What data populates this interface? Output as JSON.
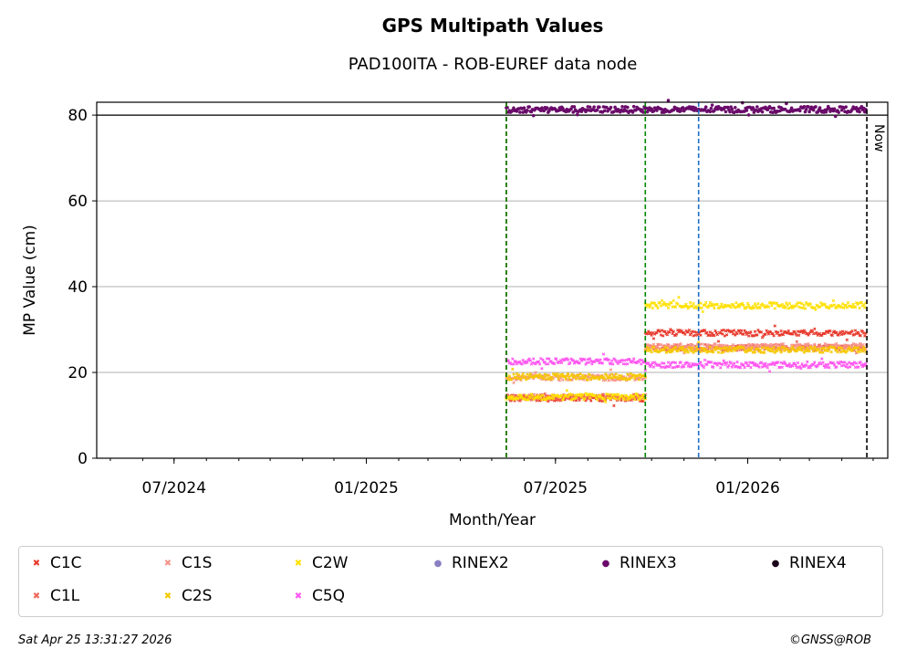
{
  "chart_data": {
    "type": "scatter",
    "title": "GPS Multipath Values",
    "subtitle": "PAD100ITA - ROB-EUREF data node",
    "xlabel": "Month/Year",
    "ylabel": "MP Value (cm)",
    "xlim": [
      "2024-04-18",
      "2026-05-15"
    ],
    "ylim": [
      0,
      83
    ],
    "x_tick_labels": [
      "07/2024",
      "01/2025",
      "07/2025",
      "01/2026"
    ],
    "x_ticks": [
      "2024-07-01",
      "2025-01-01",
      "2025-07-01",
      "2026-01-01"
    ],
    "y_ticks": [
      0,
      20,
      40,
      60,
      80
    ],
    "grid": "horizontal",
    "reference_line": 80,
    "now_date": "2026-04-25",
    "now_label": "Now",
    "vertical_events": [
      {
        "date": "2025-05-15",
        "color": "#cc0000"
      },
      {
        "date": "2025-05-15",
        "color": "#008800"
      },
      {
        "date": "2025-09-25",
        "color": "#008800"
      },
      {
        "date": "2025-11-15",
        "color": "#1f6fc6"
      }
    ],
    "series": [
      {
        "name": "C1C",
        "marker": "x",
        "color": "#e8392c",
        "segments": [
          {
            "from": "2025-05-15",
            "to": "2025-09-25",
            "mean": 14
          },
          {
            "from": "2025-09-25",
            "to": "2026-04-24",
            "mean": 29.2
          }
        ]
      },
      {
        "name": "C1L",
        "marker": "x",
        "color": "#f0655a",
        "segments": [
          {
            "from": "2025-05-15",
            "to": "2025-09-25",
            "mean": 14.2
          },
          {
            "from": "2025-09-25",
            "to": "2026-04-24",
            "mean": 25.8
          }
        ]
      },
      {
        "name": "C1S",
        "marker": "x",
        "color": "#f7938a",
        "segments": [
          {
            "from": "2025-05-15",
            "to": "2025-09-25",
            "mean": 18.8
          },
          {
            "from": "2025-09-25",
            "to": "2026-04-24",
            "mean": 26
          }
        ]
      },
      {
        "name": "C2S",
        "marker": "x",
        "color": "#f5c800",
        "segments": [
          {
            "from": "2025-05-15",
            "to": "2025-09-25",
            "mean": 19
          },
          {
            "from": "2025-09-25",
            "to": "2026-04-24",
            "mean": 25.3
          }
        ]
      },
      {
        "name": "C2W",
        "marker": "x",
        "color": "#ffe000",
        "segments": [
          {
            "from": "2025-05-15",
            "to": "2025-09-25",
            "mean": 14.3
          },
          {
            "from": "2025-09-25",
            "to": "2026-04-24",
            "mean": 35.6
          }
        ]
      },
      {
        "name": "C5Q",
        "marker": "x",
        "color": "#ff55f0",
        "segments": [
          {
            "from": "2025-05-15",
            "to": "2025-09-25",
            "mean": 22.6
          },
          {
            "from": "2025-09-25",
            "to": "2026-04-24",
            "mean": 21.8
          }
        ]
      },
      {
        "name": "RINEX2",
        "marker": "dot",
        "color": "#8a7fc0",
        "segments": []
      },
      {
        "name": "RINEX3",
        "marker": "dot",
        "color": "#6a0a6a",
        "segments": [
          {
            "from": "2025-05-15",
            "to": "2026-04-24",
            "mean": 81.3
          }
        ]
      },
      {
        "name": "RINEX4",
        "marker": "dot",
        "color": "#1a0018",
        "segments": []
      }
    ]
  },
  "legend": {
    "items": [
      {
        "label": "C1C",
        "glyph": "✖",
        "color": "#e8392c"
      },
      {
        "label": "C1L",
        "glyph": "✖",
        "color": "#f0655a"
      },
      {
        "label": "C1S",
        "glyph": "✖",
        "color": "#f7938a"
      },
      {
        "label": "C2S",
        "glyph": "✖",
        "color": "#f5c800"
      },
      {
        "label": "C2W",
        "glyph": "✖",
        "color": "#ffe000"
      },
      {
        "label": "C5Q",
        "glyph": "✖",
        "color": "#ff55f0"
      },
      {
        "label": "RINEX2",
        "glyph": "●",
        "color": "#8a7fc0"
      },
      {
        "label": "RINEX3",
        "glyph": "●",
        "color": "#6a0a6a"
      },
      {
        "label": "RINEX4",
        "glyph": "●",
        "color": "#1a0018"
      }
    ]
  },
  "footer": {
    "timestamp": "Sat Apr 25 13:31:27 2026",
    "credit": "©GNSS@ROB"
  }
}
